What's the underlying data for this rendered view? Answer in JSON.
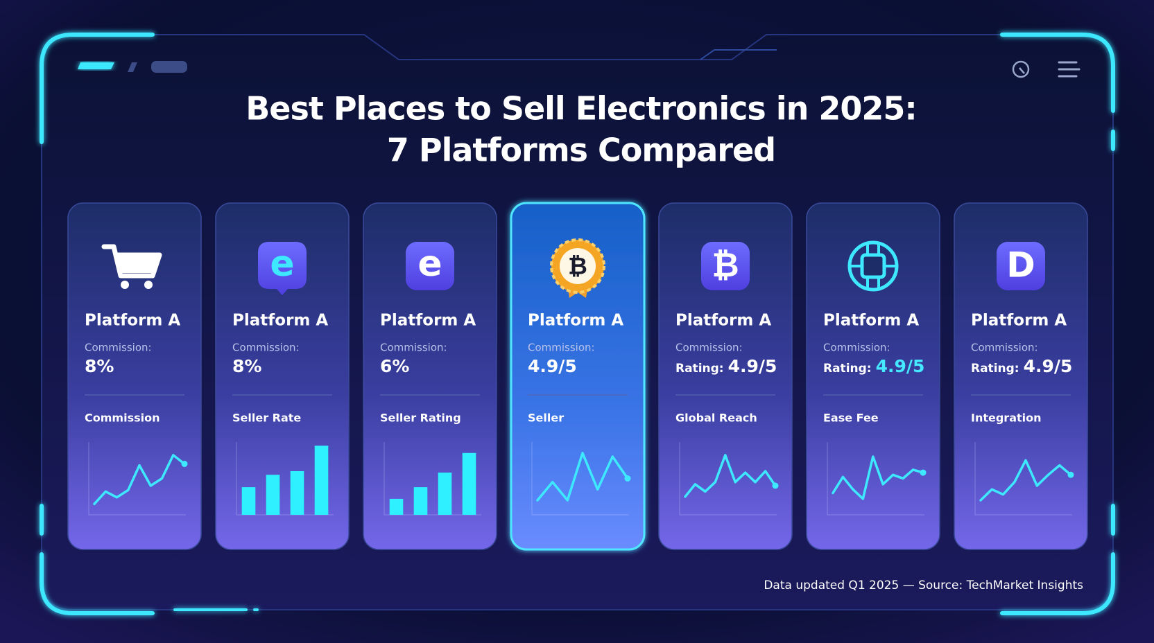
{
  "header": {
    "title_line1": "Best Places to Sell Electronics in 2025:",
    "title_line2": "7 Platforms Compared"
  },
  "cards": [
    {
      "name": "Platform A",
      "label": "Commission:",
      "value": "8%",
      "value_color": "#ffffff",
      "section": "Commission",
      "chart": {
        "type": "line",
        "color": "#3ee9ff",
        "ylim": [
          0,
          100
        ],
        "values": [
          15,
          32,
          24,
          34,
          68,
          40,
          50,
          82,
          70
        ]
      }
    },
    {
      "name": "Platform A",
      "label": "Commission:",
      "value": "8%",
      "value_color": "#ffffff",
      "section": "Seller Rate",
      "icon_text": "e",
      "chart": {
        "type": "bar",
        "color": "#2ef0ff",
        "ylim": [
          0,
          100
        ],
        "values": [
          38,
          55,
          60,
          95
        ]
      }
    },
    {
      "name": "Platform A",
      "label": "Commission:",
      "value": "6%",
      "value_color": "#ffffff",
      "section": "Seller Rating",
      "icon_text": "e",
      "chart": {
        "type": "bar",
        "color": "#2ef0ff",
        "ylim": [
          0,
          100
        ],
        "values": [
          22,
          38,
          58,
          85
        ]
      }
    },
    {
      "name": "Platform A",
      "label": "Commission:",
      "value": "4.9/5",
      "value_color": "#ffffff",
      "section": "Seller",
      "icon_text": "₿",
      "highlight": true,
      "chart": {
        "type": "line",
        "color": "#3ee9ff",
        "ylim": [
          0,
          100
        ],
        "values": [
          20,
          45,
          20,
          85,
          35,
          80,
          50
        ]
      }
    },
    {
      "name": "Platform A",
      "label": "Commission:",
      "value_prefix": "Rating:",
      "value": "4.9/5",
      "value_color": "#ffffff",
      "section": "Global Reach",
      "icon_text": "₿",
      "chart": {
        "type": "line",
        "color": "#3ee9ff",
        "ylim": [
          0,
          100
        ],
        "values": [
          25,
          42,
          32,
          45,
          82,
          45,
          58,
          45,
          60,
          40
        ]
      }
    },
    {
      "name": "Platform A",
      "label": "Commission:",
      "value_prefix": "Rating:",
      "value": "4.9/5",
      "value_color": "#45e8ff",
      "section": "Ease Fee",
      "chart": {
        "type": "line",
        "color": "#3ee9ff",
        "ylim": [
          0,
          100
        ],
        "values": [
          30,
          52,
          35,
          22,
          80,
          42,
          55,
          50,
          62,
          58
        ]
      }
    },
    {
      "name": "Platform A",
      "label": "Commission:",
      "value_prefix": "Rating:",
      "value": "4.9/5",
      "value_color": "#ffffff",
      "section": "Integration",
      "icon_text": "D",
      "chart": {
        "type": "line",
        "color": "#3ee9ff",
        "ylim": [
          0,
          100
        ],
        "values": [
          20,
          35,
          28,
          45,
          75,
          40,
          55,
          68,
          55
        ]
      }
    }
  ],
  "footer": {
    "source": "Data updated Q1 2025 — Source: TechMarket Insights"
  }
}
